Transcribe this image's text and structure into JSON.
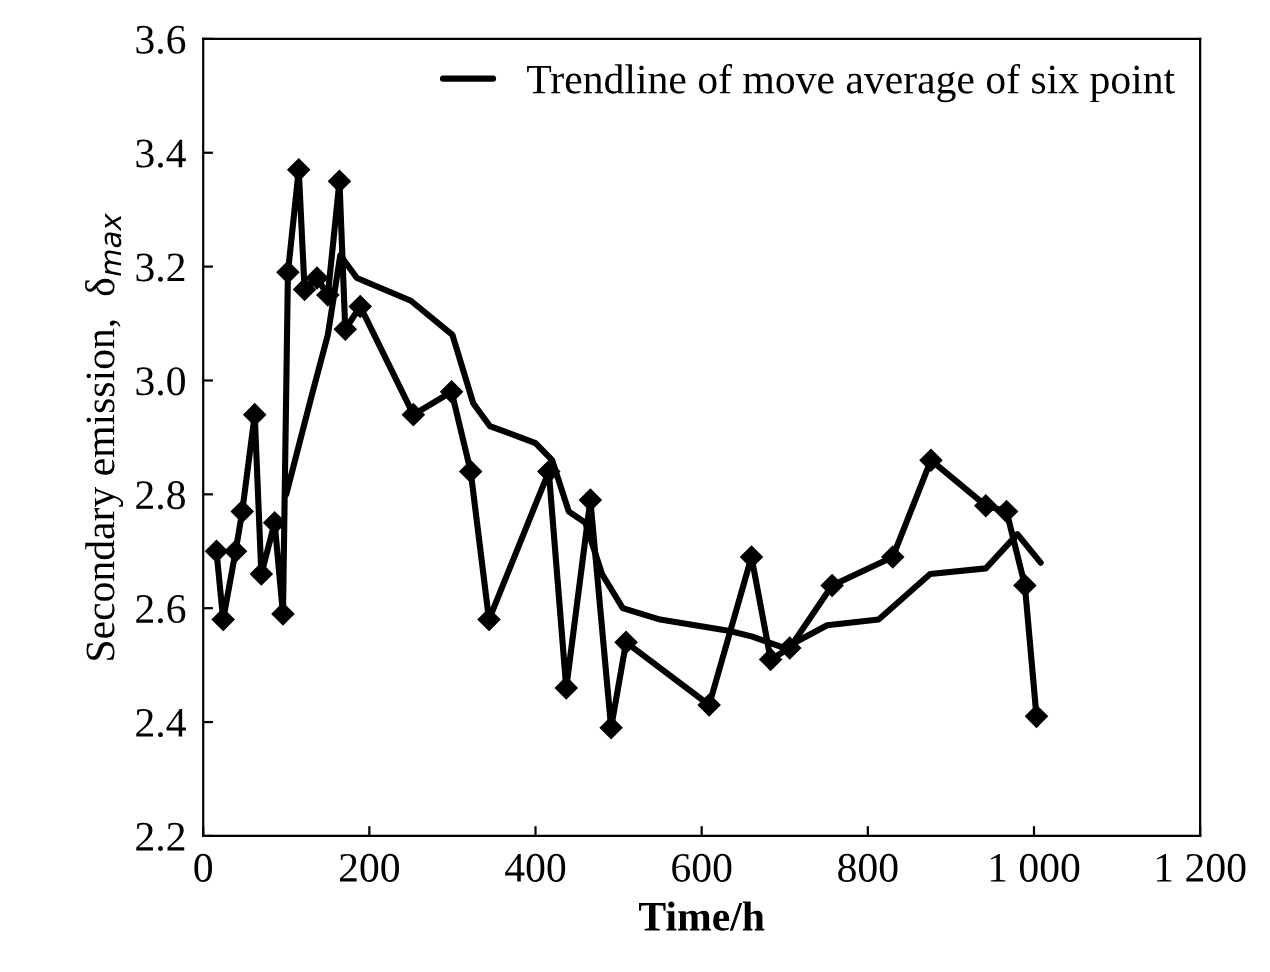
{
  "chart_data": {
    "type": "line",
    "xlabel": "Time/h",
    "ylabel": "Secondary emission,  δ$_{max}$",
    "xlim": [
      0,
      1200
    ],
    "xticks": [
      0,
      200,
      400,
      600,
      800,
      {
        "value": 1000,
        "label": "1 000"
      },
      {
        "value": 1200,
        "label": "1 200"
      }
    ],
    "ylim": [
      2.2,
      3.6
    ],
    "yticks": [
      {
        "value": 2.2,
        "label": "2.2"
      },
      {
        "value": 2.4,
        "label": "2.4"
      },
      {
        "value": 2.6,
        "label": "2.6"
      },
      {
        "value": 2.8,
        "label": "2.8"
      },
      {
        "value": 3.0,
        "label": "3.0"
      },
      {
        "value": 3.2,
        "label": "3.2"
      },
      {
        "value": 3.4,
        "label": "3.4"
      },
      {
        "value": 3.6,
        "label": "3.6"
      }
    ],
    "grid": false,
    "legend": "top right",
    "series": [
      {
        "color": "#000000",
        "marker": "diamond",
        "x": [
          16,
          24,
          39,
          47,
          62,
          70,
          86,
          96,
          102,
          115,
          122,
          137,
          150,
          164,
          171,
          189,
          253,
          299,
          322,
          344,
          416,
          437,
          466,
          491,
          509,
          609,
          660,
          683,
          706,
          757,
          830,
          876,
          942,
          967,
          989,
          1003
        ],
        "values": [
          2.7,
          2.58,
          2.7,
          2.77,
          2.94,
          2.66,
          2.75,
          2.59,
          3.19,
          3.37,
          3.16,
          3.18,
          3.15,
          3.35,
          3.09,
          3.13,
          2.94,
          2.98,
          2.84,
          2.58,
          2.84,
          2.46,
          2.79,
          2.39,
          2.54,
          2.43,
          2.69,
          2.51,
          2.53,
          2.64,
          2.69,
          2.86,
          2.78,
          2.77,
          2.64,
          2.41
        ]
      },
      {
        "name": "Trendline of move average of six point",
        "color": "#000000",
        "marker": "none",
        "x": [
          100,
          130,
          150,
          165,
          185,
          250,
          300,
          325,
          345,
          400,
          420,
          440,
          460,
          480,
          505,
          550,
          634,
          661,
          700,
          751,
          813,
          875,
          942,
          980,
          1008
        ],
        "values": [
          2.8,
          2.97,
          3.08,
          3.22,
          3.18,
          3.14,
          3.08,
          2.96,
          2.92,
          2.89,
          2.86,
          2.77,
          2.75,
          2.66,
          2.6,
          2.58,
          2.56,
          2.55,
          2.53,
          2.57,
          2.58,
          2.66,
          2.67,
          2.73,
          2.68
        ]
      }
    ]
  }
}
